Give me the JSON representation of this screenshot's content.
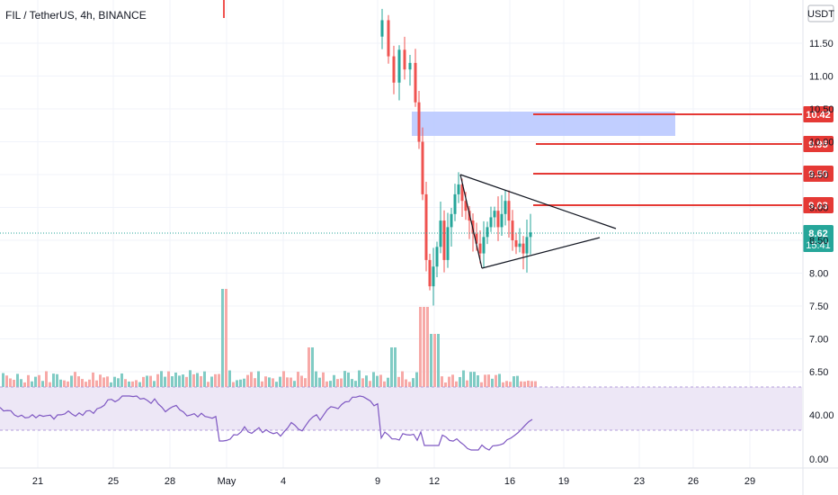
{
  "header": {
    "symbol_line": "FIL / TetherUS, 4h, BINANCE"
  },
  "chart_data": {
    "type": "candlestick",
    "symbol": "FIL / TetherUS",
    "interval": "4h",
    "exchange": "BINANCE",
    "currency": "USDT",
    "price_ticks": [
      "11.50",
      "11.00",
      "10.50",
      "10.00",
      "9.50",
      "9.00",
      "8.50",
      "8.00",
      "7.50",
      "7.00",
      "6.50"
    ],
    "rsi_ticks": [
      "40.00",
      "0.00"
    ],
    "x_ticks": [
      "21",
      "25",
      "28",
      "May",
      "4",
      "9",
      "12",
      "16",
      "19",
      "23",
      "26",
      "29"
    ],
    "current_price": {
      "label": "8.62",
      "countdown": "15:41",
      "value": 8.62
    },
    "levels": [
      {
        "label": "10.42",
        "value": 10.42
      },
      {
        "label": "9.95",
        "value": 9.95
      },
      {
        "label": "9.50",
        "value": 9.5
      },
      {
        "label": "9.03",
        "value": 9.03
      }
    ],
    "zone": {
      "from": 9.95,
      "to": 10.32
    },
    "triangle": {
      "upper": [
        [
          9.35,
          9.5
        ],
        [
          9.35,
          8.55
        ]
      ],
      "lower": [
        [
          9.35,
          8.07
        ],
        [
          9.35,
          8.75
        ]
      ]
    },
    "colors": {
      "up": "#26a69a",
      "down": "#ef5350",
      "level": "#e53935",
      "zone": "#b6c5ff",
      "rsi_line": "#7e57c2",
      "rsi_band": "#ede7f6",
      "price_badge": "#26a69a"
    }
  }
}
